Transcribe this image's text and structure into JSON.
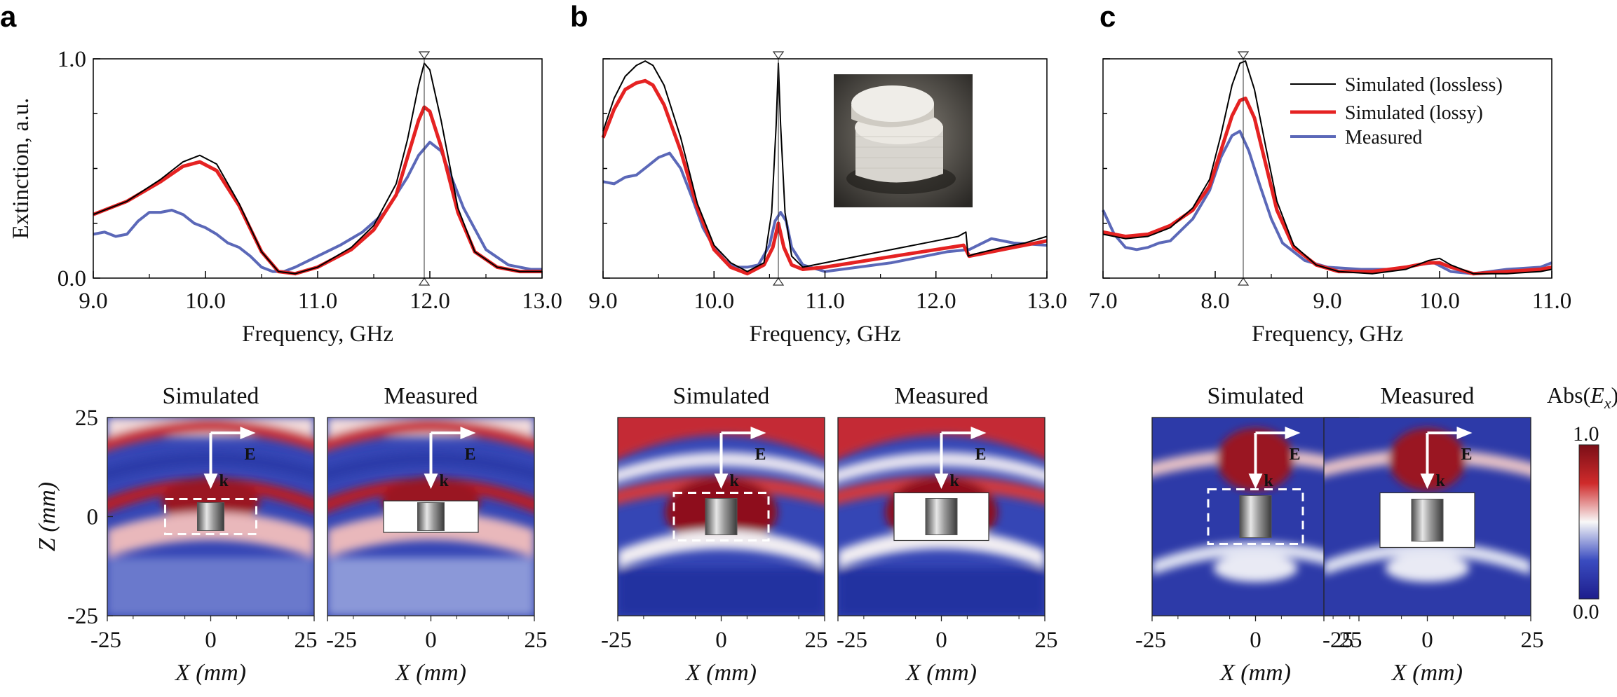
{
  "panels": [
    {
      "letter": "a"
    },
    {
      "letter": "b"
    },
    {
      "letter": "c"
    }
  ],
  "colors": {
    "lossless": "#000000",
    "lossy": "#e52222",
    "measured": "#5b68b8",
    "cmap_low": "#1d1d8c",
    "cmap_mid": "#f8f8f8",
    "cmap_high": "#7a0e17"
  },
  "legend": {
    "lossless": "Simulated (lossless)",
    "lossy": "Simulated (lossy)",
    "measured": "Measured"
  },
  "chart_data": [
    {
      "type": "line",
      "panel": "a",
      "title": "",
      "xlabel": "Frequency, GHz",
      "ylabel": "Extinction, a.u.",
      "xlim": [
        9.0,
        13.0
      ],
      "ylim": [
        0.0,
        1.0
      ],
      "xticks": [
        "9.0",
        "10.0",
        "11.0",
        "12.0",
        "13.0"
      ],
      "yticks": [
        "0.0",
        "1.0"
      ],
      "marker_x": 11.95,
      "series": [
        {
          "name": "Simulated (lossless)",
          "x": [
            9.0,
            9.3,
            9.6,
            9.8,
            9.95,
            10.1,
            10.3,
            10.5,
            10.65,
            10.8,
            11.0,
            11.3,
            11.5,
            11.7,
            11.8,
            11.9,
            11.95,
            12.0,
            12.1,
            12.25,
            12.4,
            12.6,
            12.8,
            13.0
          ],
          "y": [
            0.29,
            0.35,
            0.45,
            0.53,
            0.56,
            0.52,
            0.34,
            0.12,
            0.03,
            0.02,
            0.05,
            0.14,
            0.24,
            0.43,
            0.63,
            0.88,
            0.98,
            0.95,
            0.72,
            0.32,
            0.12,
            0.05,
            0.03,
            0.03
          ]
        },
        {
          "name": "Simulated (lossy)",
          "x": [
            9.0,
            9.3,
            9.6,
            9.8,
            9.95,
            10.1,
            10.3,
            10.5,
            10.65,
            10.8,
            11.0,
            11.3,
            11.5,
            11.7,
            11.8,
            11.9,
            11.95,
            12.0,
            12.1,
            12.25,
            12.4,
            12.6,
            12.8,
            13.0
          ],
          "y": [
            0.29,
            0.35,
            0.44,
            0.51,
            0.53,
            0.49,
            0.33,
            0.12,
            0.03,
            0.02,
            0.05,
            0.13,
            0.22,
            0.38,
            0.55,
            0.72,
            0.78,
            0.76,
            0.6,
            0.3,
            0.12,
            0.05,
            0.03,
            0.03
          ]
        },
        {
          "name": "Measured",
          "x": [
            9.0,
            9.1,
            9.2,
            9.3,
            9.4,
            9.5,
            9.6,
            9.7,
            9.8,
            9.9,
            10.0,
            10.1,
            10.2,
            10.3,
            10.4,
            10.5,
            10.6,
            10.7,
            10.8,
            11.0,
            11.2,
            11.4,
            11.6,
            11.8,
            11.9,
            12.0,
            12.1,
            12.2,
            12.3,
            12.5,
            12.7,
            12.9,
            13.0
          ],
          "y": [
            0.2,
            0.21,
            0.19,
            0.2,
            0.26,
            0.3,
            0.3,
            0.31,
            0.29,
            0.25,
            0.23,
            0.2,
            0.16,
            0.14,
            0.1,
            0.05,
            0.03,
            0.03,
            0.05,
            0.1,
            0.15,
            0.21,
            0.3,
            0.46,
            0.56,
            0.62,
            0.58,
            0.45,
            0.32,
            0.13,
            0.06,
            0.04,
            0.04
          ]
        }
      ]
    },
    {
      "type": "line",
      "panel": "b",
      "title": "",
      "xlabel": "Frequency, GHz",
      "ylabel": "",
      "xlim": [
        9.0,
        13.0
      ],
      "ylim": [
        0.0,
        1.0
      ],
      "xticks": [
        "9.0",
        "10.0",
        "11.0",
        "12.0",
        "13.0"
      ],
      "yticks": [],
      "marker_x": 10.58,
      "series": [
        {
          "name": "Simulated (lossless)",
          "x": [
            9.0,
            9.1,
            9.2,
            9.3,
            9.38,
            9.45,
            9.55,
            9.7,
            9.85,
            10.0,
            10.15,
            10.3,
            10.45,
            10.52,
            10.56,
            10.58,
            10.6,
            10.64,
            10.7,
            10.8,
            11.0,
            11.5,
            12.0,
            12.2,
            12.27,
            12.29,
            12.35,
            12.6,
            12.8,
            13.0
          ],
          "y": [
            0.67,
            0.82,
            0.92,
            0.97,
            0.99,
            0.97,
            0.88,
            0.64,
            0.34,
            0.15,
            0.07,
            0.03,
            0.07,
            0.3,
            0.7,
            0.98,
            0.7,
            0.3,
            0.1,
            0.05,
            0.07,
            0.12,
            0.17,
            0.19,
            0.21,
            0.1,
            0.11,
            0.14,
            0.16,
            0.19
          ]
        },
        {
          "name": "Simulated (lossy)",
          "x": [
            9.0,
            9.1,
            9.2,
            9.3,
            9.38,
            9.45,
            9.55,
            9.7,
            9.85,
            10.0,
            10.15,
            10.3,
            10.45,
            10.53,
            10.58,
            10.63,
            10.7,
            10.8,
            11.0,
            11.5,
            12.0,
            12.25,
            12.3,
            12.6,
            13.0
          ],
          "y": [
            0.64,
            0.77,
            0.86,
            0.89,
            0.9,
            0.88,
            0.79,
            0.58,
            0.32,
            0.13,
            0.05,
            0.02,
            0.06,
            0.14,
            0.25,
            0.14,
            0.06,
            0.04,
            0.05,
            0.09,
            0.13,
            0.15,
            0.1,
            0.13,
            0.17
          ]
        },
        {
          "name": "Measured",
          "x": [
            9.0,
            9.1,
            9.2,
            9.3,
            9.4,
            9.5,
            9.6,
            9.7,
            9.8,
            9.9,
            10.0,
            10.1,
            10.2,
            10.3,
            10.4,
            10.5,
            10.55,
            10.6,
            10.65,
            10.7,
            10.8,
            11.0,
            11.3,
            11.6,
            11.9,
            12.1,
            12.3,
            12.5,
            12.7,
            13.0
          ],
          "y": [
            0.44,
            0.43,
            0.46,
            0.47,
            0.51,
            0.55,
            0.57,
            0.5,
            0.37,
            0.23,
            0.14,
            0.08,
            0.05,
            0.05,
            0.06,
            0.15,
            0.26,
            0.3,
            0.26,
            0.14,
            0.06,
            0.03,
            0.05,
            0.07,
            0.1,
            0.12,
            0.13,
            0.18,
            0.16,
            0.15
          ]
        }
      ]
    },
    {
      "type": "line",
      "panel": "c",
      "title": "",
      "xlabel": "Frequency, GHz",
      "ylabel": "",
      "xlim": [
        7.0,
        11.0
      ],
      "ylim": [
        0.0,
        1.0
      ],
      "xticks": [
        "7.0",
        "8.0",
        "9.0",
        "10.0",
        "11.0"
      ],
      "yticks": [],
      "marker_x": 8.25,
      "series": [
        {
          "name": "Simulated (lossless)",
          "x": [
            7.0,
            7.2,
            7.4,
            7.6,
            7.8,
            7.95,
            8.05,
            8.15,
            8.22,
            8.27,
            8.35,
            8.45,
            8.55,
            8.7,
            8.9,
            9.1,
            9.4,
            9.7,
            9.9,
            10.0,
            10.1,
            10.3,
            10.6,
            10.9,
            11.0
          ],
          "y": [
            0.2,
            0.18,
            0.19,
            0.23,
            0.32,
            0.45,
            0.65,
            0.88,
            0.98,
            0.99,
            0.86,
            0.6,
            0.35,
            0.15,
            0.06,
            0.03,
            0.02,
            0.04,
            0.08,
            0.09,
            0.06,
            0.02,
            0.02,
            0.03,
            0.04
          ]
        },
        {
          "name": "Simulated (lossy)",
          "x": [
            7.0,
            7.2,
            7.4,
            7.6,
            7.8,
            7.95,
            8.05,
            8.15,
            8.22,
            8.27,
            8.35,
            8.45,
            8.55,
            8.7,
            8.9,
            9.1,
            9.4,
            9.7,
            9.9,
            10.0,
            10.1,
            10.3,
            10.6,
            10.9,
            11.0
          ],
          "y": [
            0.21,
            0.19,
            0.2,
            0.24,
            0.31,
            0.42,
            0.58,
            0.74,
            0.81,
            0.82,
            0.73,
            0.52,
            0.31,
            0.14,
            0.06,
            0.03,
            0.03,
            0.05,
            0.07,
            0.07,
            0.05,
            0.02,
            0.03,
            0.04,
            0.05
          ]
        },
        {
          "name": "Measured",
          "x": [
            7.0,
            7.1,
            7.2,
            7.3,
            7.4,
            7.5,
            7.6,
            7.8,
            7.95,
            8.05,
            8.15,
            8.22,
            8.3,
            8.4,
            8.5,
            8.6,
            8.8,
            9.0,
            9.3,
            9.6,
            9.8,
            9.95,
            10.1,
            10.3,
            10.6,
            10.9,
            11.0
          ],
          "y": [
            0.31,
            0.2,
            0.14,
            0.13,
            0.14,
            0.16,
            0.17,
            0.27,
            0.4,
            0.55,
            0.65,
            0.67,
            0.58,
            0.42,
            0.27,
            0.16,
            0.08,
            0.05,
            0.04,
            0.04,
            0.06,
            0.07,
            0.03,
            0.02,
            0.04,
            0.05,
            0.07
          ]
        }
      ]
    },
    {
      "type": "heatmap",
      "panel": "a",
      "titles": [
        "Simulated",
        "Measured"
      ],
      "xlabel": "X (mm)",
      "ylabel": "Z (mm)",
      "xlim": [
        -25,
        25
      ],
      "ylim": [
        -25,
        25
      ],
      "xticks": [
        "-25",
        "0",
        "25"
      ],
      "yticks": [
        "25",
        "0",
        "-25"
      ],
      "vectors": [
        "E",
        "k"
      ]
    },
    {
      "type": "heatmap",
      "panel": "b",
      "titles": [
        "Simulated",
        "Measured"
      ],
      "xlabel": "X (mm)",
      "xlim": [
        -25,
        25
      ],
      "xticks": [
        "-25",
        "0",
        "25"
      ],
      "vectors": [
        "E",
        "k"
      ]
    },
    {
      "type": "heatmap",
      "panel": "c",
      "titles": [
        "Simulated",
        "Measured"
      ],
      "xlabel": "X (mm)",
      "xlim": [
        -25,
        25
      ],
      "xticks": [
        "-25",
        "0",
        "25"
      ],
      "vectors": [
        "E",
        "k"
      ],
      "colorbar": {
        "label_prefix": "Abs(",
        "label_var": "E",
        "label_sub": "x",
        "label_suffix": ")",
        "max": "1.0",
        "min": "0.0"
      }
    }
  ]
}
